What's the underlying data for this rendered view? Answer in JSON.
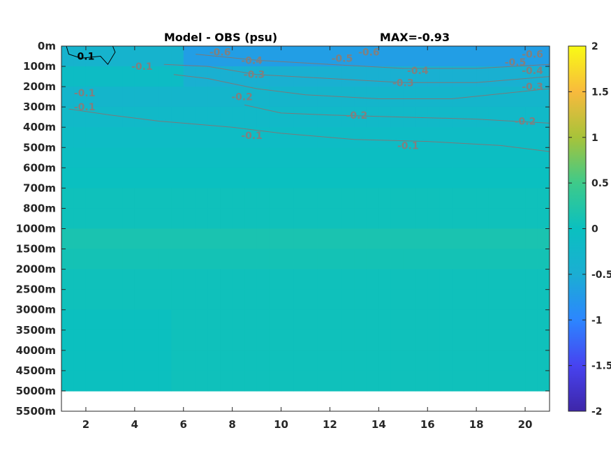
{
  "chart_data": {
    "type": "heatmap",
    "title": "Model - OBS (psu)",
    "subtitle": "MAX=-0.93",
    "x": [
      2,
      4,
      6,
      8,
      10,
      12,
      14,
      16,
      18,
      20
    ],
    "xlim": [
      1,
      21
    ],
    "ylabels": [
      "0m",
      "100m",
      "200m",
      "300m",
      "400m",
      "500m",
      "600m",
      "700m",
      "800m",
      "1000m",
      "1500m",
      "2000m",
      "2500m",
      "3000m",
      "3500m",
      "4000m",
      "4500m",
      "5000m",
      "5500m"
    ],
    "colorbar": {
      "range": [
        -2,
        2
      ],
      "ticks": [
        "2",
        "1.5",
        "1",
        "0.5",
        "0",
        "-0.5",
        "-1",
        "-1.5",
        "-2"
      ],
      "colors": [
        "#3e26a8",
        "#4743f0",
        "#2c86ff",
        "#1baed3",
        "#0ac0c0",
        "#3eca8a",
        "#a7c33a",
        "#f8ba3d",
        "#f9fb15"
      ]
    },
    "depth_profile": [
      {
        "depth": "0m",
        "value": -0.7
      },
      {
        "depth": "100m",
        "value": -0.45
      },
      {
        "depth": "200m",
        "value": -0.3
      },
      {
        "depth": "300m",
        "value": -0.2
      },
      {
        "depth": "400m",
        "value": -0.12
      },
      {
        "depth": "500m",
        "value": -0.05
      },
      {
        "depth": "600m",
        "value": 0.0
      },
      {
        "depth": "700m",
        "value": 0.05
      },
      {
        "depth": "800m",
        "value": 0.05
      },
      {
        "depth": "1000m",
        "value": 0.15
      },
      {
        "depth": "1500m",
        "value": 0.1
      },
      {
        "depth": "2000m",
        "value": 0.05
      },
      {
        "depth": "2500m",
        "value": 0.05
      },
      {
        "depth": "3000m",
        "value": 0.05
      },
      {
        "depth": "3500m",
        "value": 0.05
      },
      {
        "depth": "4000m",
        "value": 0.05
      },
      {
        "depth": "4500m",
        "value": 0.05
      },
      {
        "depth": "5000m",
        "value": null
      }
    ],
    "contour_labels": [
      {
        "text": "0.1",
        "x": 2.0,
        "depth_index": 0.5,
        "color": "#000000"
      },
      {
        "text": "-0.1",
        "x": 4.3,
        "depth_index": 1.0,
        "color": "#808080"
      },
      {
        "text": "-0.1",
        "x": 1.95,
        "depth_index": 2.3,
        "color": "#808080"
      },
      {
        "text": "-0.1",
        "x": 1.95,
        "depth_index": 3.0,
        "color": "#808080"
      },
      {
        "text": "-0.6",
        "x": 7.5,
        "depth_index": 0.3,
        "color": "#808080"
      },
      {
        "text": "-0.4",
        "x": 8.8,
        "depth_index": 0.7,
        "color": "#808080"
      },
      {
        "text": "-0.3",
        "x": 8.9,
        "depth_index": 1.4,
        "color": "#808080"
      },
      {
        "text": "-0.2",
        "x": 8.4,
        "depth_index": 2.5,
        "color": "#808080"
      },
      {
        "text": "-0.5",
        "x": 12.5,
        "depth_index": 0.6,
        "color": "#808080"
      },
      {
        "text": "-0.6",
        "x": 13.6,
        "depth_index": 0.3,
        "color": "#808080"
      },
      {
        "text": "-0.4",
        "x": 15.6,
        "depth_index": 1.2,
        "color": "#808080"
      },
      {
        "text": "-0.3",
        "x": 15.0,
        "depth_index": 1.8,
        "color": "#808080"
      },
      {
        "text": "-0.2",
        "x": 13.1,
        "depth_index": 3.4,
        "color": "#808080"
      },
      {
        "text": "-0.1",
        "x": 8.8,
        "depth_index": 4.4,
        "color": "#808080"
      },
      {
        "text": "-0.1",
        "x": 15.2,
        "depth_index": 4.9,
        "color": "#808080"
      },
      {
        "text": "-0.2",
        "x": 20.0,
        "depth_index": 3.7,
        "color": "#808080"
      },
      {
        "text": "-0.6",
        "x": 20.3,
        "depth_index": 0.4,
        "color": "#808080"
      },
      {
        "text": "-0.5",
        "x": 19.6,
        "depth_index": 0.8,
        "color": "#808080"
      },
      {
        "text": "-0.4",
        "x": 20.3,
        "depth_index": 1.2,
        "color": "#808080"
      },
      {
        "text": "-0.3",
        "x": 20.3,
        "depth_index": 2.0,
        "color": "#808080"
      }
    ]
  }
}
